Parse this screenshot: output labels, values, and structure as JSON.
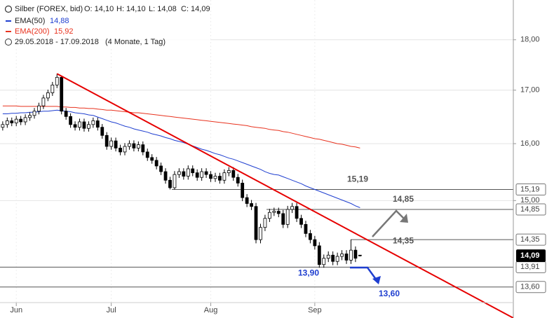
{
  "chart_data": {
    "type": "candlestick",
    "title": "Silber (FOREX, bid)",
    "ohlc_labels": [
      "O: 14,10",
      "H: 14,10",
      "L: 14,08",
      "C: 14,09"
    ],
    "date_range": "29.05.2018 - 17.09.2018",
    "period": "(4 Monate, 1 Tag)",
    "log_scale": true,
    "grid": true,
    "xlim": [
      -0.6,
      112.9
    ],
    "xticks": [
      {
        "value": 3,
        "label": "Jun"
      },
      {
        "value": 24,
        "label": "Jul"
      },
      {
        "value": 46,
        "label": "Aug"
      },
      {
        "value": 69,
        "label": "Sep"
      }
    ],
    "ylim": [
      13.13,
      18.83
    ],
    "yticks": [
      {
        "value": 15,
        "label": "15,00"
      },
      {
        "value": 16,
        "label": "16,00"
      },
      {
        "value": 17,
        "label": "17,00"
      },
      {
        "value": 18,
        "label": "18,00"
      }
    ],
    "open": [
      16.3,
      16.35,
      16.42,
      16.38,
      16.45,
      16.4,
      16.48,
      16.52,
      16.6,
      16.7,
      16.85,
      16.95,
      17.1,
      17.25,
      16.6,
      16.5,
      16.35,
      16.3,
      16.4,
      16.28,
      16.35,
      16.42,
      16.3,
      16.15,
      15.95,
      16.05,
      15.92,
      15.85,
      15.95,
      16.0,
      15.92,
      15.98,
      15.85,
      15.75,
      15.7,
      15.6,
      15.5,
      15.35,
      15.22,
      15.45,
      15.5,
      15.42,
      15.55,
      15.48,
      15.4,
      15.5,
      15.45,
      15.38,
      15.42,
      15.35,
      15.48,
      15.52,
      15.4,
      15.3,
      15.05,
      14.95,
      14.9,
      14.35,
      14.55,
      14.7,
      14.8,
      14.82,
      14.78,
      14.6,
      14.85,
      14.9,
      14.7,
      14.6,
      14.45,
      14.35,
      14.25,
      13.95,
      14.05,
      14.1,
      14.0,
      14.08,
      14.12,
      14.02,
      14.18,
      14.1
    ],
    "high": [
      16.41,
      16.48,
      16.48,
      16.51,
      16.51,
      16.54,
      16.58,
      16.66,
      16.76,
      16.91,
      17.01,
      17.16,
      17.32,
      17.28,
      16.66,
      16.56,
      16.41,
      16.46,
      16.46,
      16.41,
      16.48,
      16.48,
      16.36,
      16.21,
      16.11,
      16.11,
      15.98,
      16.01,
      16.06,
      16.06,
      16.04,
      16.04,
      15.91,
      15.81,
      15.76,
      15.66,
      15.56,
      15.41,
      15.51,
      15.56,
      15.56,
      15.61,
      15.61,
      15.54,
      15.56,
      15.56,
      15.51,
      15.48,
      15.48,
      15.54,
      15.58,
      15.58,
      15.46,
      15.36,
      15.11,
      15.01,
      14.96,
      14.61,
      14.76,
      14.86,
      14.88,
      14.88,
      14.84,
      14.91,
      14.96,
      14.96,
      14.76,
      14.66,
      14.51,
      14.41,
      14.31,
      14.11,
      14.16,
      14.16,
      14.14,
      14.18,
      14.18,
      14.35,
      14.24,
      14.1
    ],
    "low": [
      16.24,
      16.29,
      16.32,
      16.32,
      16.34,
      16.34,
      16.42,
      16.46,
      16.54,
      16.64,
      16.79,
      16.89,
      17.04,
      16.54,
      16.44,
      16.29,
      16.24,
      16.24,
      16.22,
      16.22,
      16.29,
      16.24,
      16.09,
      15.89,
      15.89,
      15.86,
      15.79,
      15.79,
      15.89,
      15.86,
      15.86,
      15.79,
      15.69,
      15.64,
      15.54,
      15.44,
      15.29,
      15.19,
      15.19,
      15.39,
      15.36,
      15.36,
      15.42,
      15.34,
      15.34,
      15.39,
      15.32,
      15.32,
      15.29,
      15.29,
      15.42,
      15.34,
      15.24,
      14.99,
      14.89,
      14.84,
      14.29,
      14.29,
      14.49,
      14.64,
      14.74,
      14.72,
      14.54,
      14.54,
      14.79,
      14.64,
      14.54,
      14.39,
      14.29,
      14.19,
      13.9,
      13.9,
      13.99,
      13.94,
      13.94,
      14.02,
      13.96,
      13.96,
      13.99,
      14.08
    ],
    "close": [
      16.35,
      16.42,
      16.38,
      16.45,
      16.4,
      16.48,
      16.52,
      16.6,
      16.7,
      16.85,
      16.95,
      17.1,
      17.25,
      16.6,
      16.5,
      16.35,
      16.3,
      16.4,
      16.28,
      16.35,
      16.42,
      16.3,
      16.15,
      15.95,
      16.05,
      15.92,
      15.85,
      15.95,
      16.0,
      15.92,
      15.98,
      15.85,
      15.75,
      15.7,
      15.6,
      15.5,
      15.35,
      15.22,
      15.45,
      15.5,
      15.42,
      15.55,
      15.48,
      15.4,
      15.5,
      15.45,
      15.38,
      15.42,
      15.35,
      15.48,
      15.52,
      15.4,
      15.3,
      15.05,
      14.95,
      14.9,
      14.35,
      14.55,
      14.7,
      14.8,
      14.82,
      14.78,
      14.6,
      14.85,
      14.9,
      14.7,
      14.6,
      14.45,
      14.35,
      14.25,
      13.95,
      14.05,
      14.1,
      14.0,
      14.08,
      14.12,
      14.02,
      14.18,
      14.05,
      14.09
    ],
    "series": [
      {
        "name": "EMA(50)",
        "value_label": "14,88",
        "color": "#1f3fd0",
        "values": [
          16.55,
          16.55,
          16.56,
          16.56,
          16.57,
          16.57,
          16.58,
          16.58,
          16.59,
          16.6,
          16.6,
          16.61,
          16.62,
          16.61,
          16.6,
          16.59,
          16.57,
          16.56,
          16.55,
          16.53,
          16.52,
          16.49,
          16.46,
          16.43,
          16.4,
          16.38,
          16.35,
          16.32,
          16.3,
          16.27,
          16.25,
          16.23,
          16.21,
          16.18,
          16.16,
          16.14,
          16.11,
          16.09,
          16.06,
          16.04,
          16.02,
          15.99,
          15.96,
          15.93,
          15.9,
          15.88,
          15.85,
          15.82,
          15.8,
          15.77,
          15.74,
          15.72,
          15.69,
          15.66,
          15.63,
          15.6,
          15.57,
          15.54,
          15.5,
          15.47,
          15.45,
          15.44,
          15.41,
          15.38,
          15.35,
          15.32,
          15.29,
          15.25,
          15.22,
          15.19,
          15.16,
          15.13,
          15.1,
          15.07,
          15.04,
          15.01,
          14.98,
          14.95,
          14.91,
          14.88
        ]
      },
      {
        "name": "EMA(200)",
        "value_label": "15,92",
        "color": "#e8321e",
        "values": [
          16.7,
          16.7,
          16.7,
          16.7,
          16.69,
          16.69,
          16.69,
          16.69,
          16.69,
          16.69,
          16.69,
          16.69,
          16.69,
          16.68,
          16.68,
          16.67,
          16.67,
          16.66,
          16.66,
          16.65,
          16.65,
          16.64,
          16.63,
          16.62,
          16.62,
          16.61,
          16.6,
          16.59,
          16.58,
          16.57,
          16.57,
          16.56,
          16.55,
          16.54,
          16.53,
          16.52,
          16.51,
          16.5,
          16.49,
          16.48,
          16.47,
          16.46,
          16.45,
          16.44,
          16.43,
          16.42,
          16.41,
          16.4,
          16.39,
          16.38,
          16.37,
          16.36,
          16.35,
          16.34,
          16.33,
          16.31,
          16.3,
          16.29,
          16.28,
          16.26,
          16.25,
          16.24,
          16.22,
          16.21,
          16.19,
          16.17,
          16.15,
          16.13,
          16.11,
          16.09,
          16.08,
          16.06,
          16.04,
          16.02,
          16.0,
          15.99,
          15.97,
          15.95,
          15.94,
          15.92
        ]
      }
    ],
    "trendline": {
      "color": "#e60000",
      "x": [
        12,
        112.9
      ],
      "y": [
        17.32,
        13.13
      ]
    },
    "levels": [
      {
        "value": 15.19,
        "label": "15,19"
      },
      {
        "value": 14.85,
        "label": "14,85"
      },
      {
        "value": 14.35,
        "label": "14,35"
      },
      {
        "value": 13.91,
        "label": "13,91"
      },
      {
        "value": 13.6,
        "label": "13,60"
      }
    ],
    "last": {
      "value": 14.09,
      "label": "14,09"
    },
    "annotations": [
      {
        "text": "15,19",
        "value": 15.19,
        "color": "#555555"
      },
      {
        "text": "14,85",
        "value": 14.85,
        "color": "#555555"
      },
      {
        "text": "14,35",
        "value": 14.35,
        "color": "#555555"
      },
      {
        "text": "13,90",
        "value": 13.9,
        "color": "#1f3fd0"
      },
      {
        "text": "13,60",
        "value": 13.6,
        "color": "#1f3fd0"
      }
    ]
  }
}
